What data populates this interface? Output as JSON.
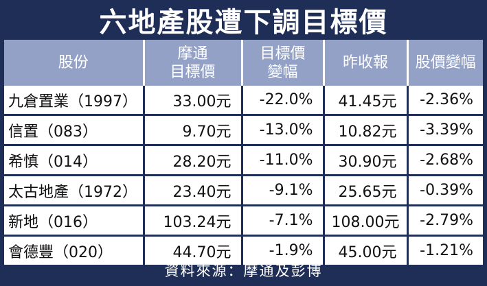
{
  "title": "六地產股遭下調目標價",
  "columns": [
    "股份",
    "摩通\n目標價",
    "目標價\n變幅",
    "昨收報",
    "股價變幅"
  ],
  "rows": [
    {
      "stock": "九倉置業（1997）",
      "target": "33.00元",
      "target_change": "-22.0%",
      "close": "41.45元",
      "price_change": "-2.36%"
    },
    {
      "stock": "信置（083）",
      "target": "9.70元",
      "target_change": "-13.0%",
      "close": "10.82元",
      "price_change": "-3.39%"
    },
    {
      "stock": "希慎（014）",
      "target": "28.20元",
      "target_change": "-11.0%",
      "close": "30.90元",
      "price_change": "-2.68%"
    },
    {
      "stock": "太古地產（1972）",
      "target": "23.40元",
      "target_change": "-9.1%",
      "close": "25.65元",
      "price_change": "-0.39%"
    },
    {
      "stock": "新地（016）",
      "target": "103.24元",
      "target_change": "-7.1%",
      "close": "108.00元",
      "price_change": "-2.79%"
    },
    {
      "stock": "會德豐（020）",
      "target": "44.70元",
      "target_change": "-1.9%",
      "close": "45.00元",
      "price_change": "-1.21%"
    }
  ],
  "source": "資料來源：摩通及彭博",
  "colors": {
    "navy": "#1f2e57",
    "header": "#93a1c6"
  }
}
